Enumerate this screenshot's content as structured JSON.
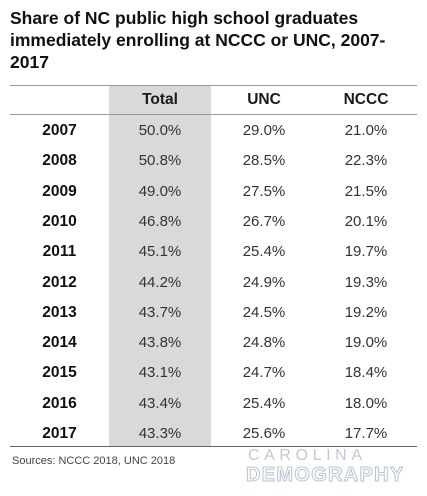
{
  "title": "Share of NC public high school graduates immediately enrolling at NCCC or UNC, 2007-2017",
  "source": "Sources: NCCC 2018, UNC 2018",
  "logo": {
    "line1": "CAROLINA",
    "line2": "DEMOGRAPHY"
  },
  "colors": {
    "total_column_fill": "#d9d9d9",
    "logo": "#bfc9d9"
  },
  "chart_data": {
    "type": "table",
    "title": "Share of NC public high school graduates immediately enrolling at NCCC or UNC, 2007-2017",
    "columns": [
      "",
      "Total",
      "UNC",
      "NCCC"
    ],
    "rows": [
      {
        "year": "2007",
        "total": "50.0%",
        "unc": "29.0%",
        "nccc": "21.0%"
      },
      {
        "year": "2008",
        "total": "50.8%",
        "unc": "28.5%",
        "nccc": "22.3%"
      },
      {
        "year": "2009",
        "total": "49.0%",
        "unc": "27.5%",
        "nccc": "21.5%"
      },
      {
        "year": "2010",
        "total": "46.8%",
        "unc": "26.7%",
        "nccc": "20.1%"
      },
      {
        "year": "2011",
        "total": "45.1%",
        "unc": "25.4%",
        "nccc": "19.7%"
      },
      {
        "year": "2012",
        "total": "44.2%",
        "unc": "24.9%",
        "nccc": "19.3%"
      },
      {
        "year": "2013",
        "total": "43.7%",
        "unc": "24.5%",
        "nccc": "19.2%"
      },
      {
        "year": "2014",
        "total": "43.8%",
        "unc": "24.8%",
        "nccc": "19.0%"
      },
      {
        "year": "2015",
        "total": "43.1%",
        "unc": "24.7%",
        "nccc": "18.4%"
      },
      {
        "year": "2016",
        "total": "43.4%",
        "unc": "25.4%",
        "nccc": "18.0%"
      },
      {
        "year": "2017",
        "total": "43.3%",
        "unc": "25.6%",
        "nccc": "17.7%"
      }
    ]
  }
}
